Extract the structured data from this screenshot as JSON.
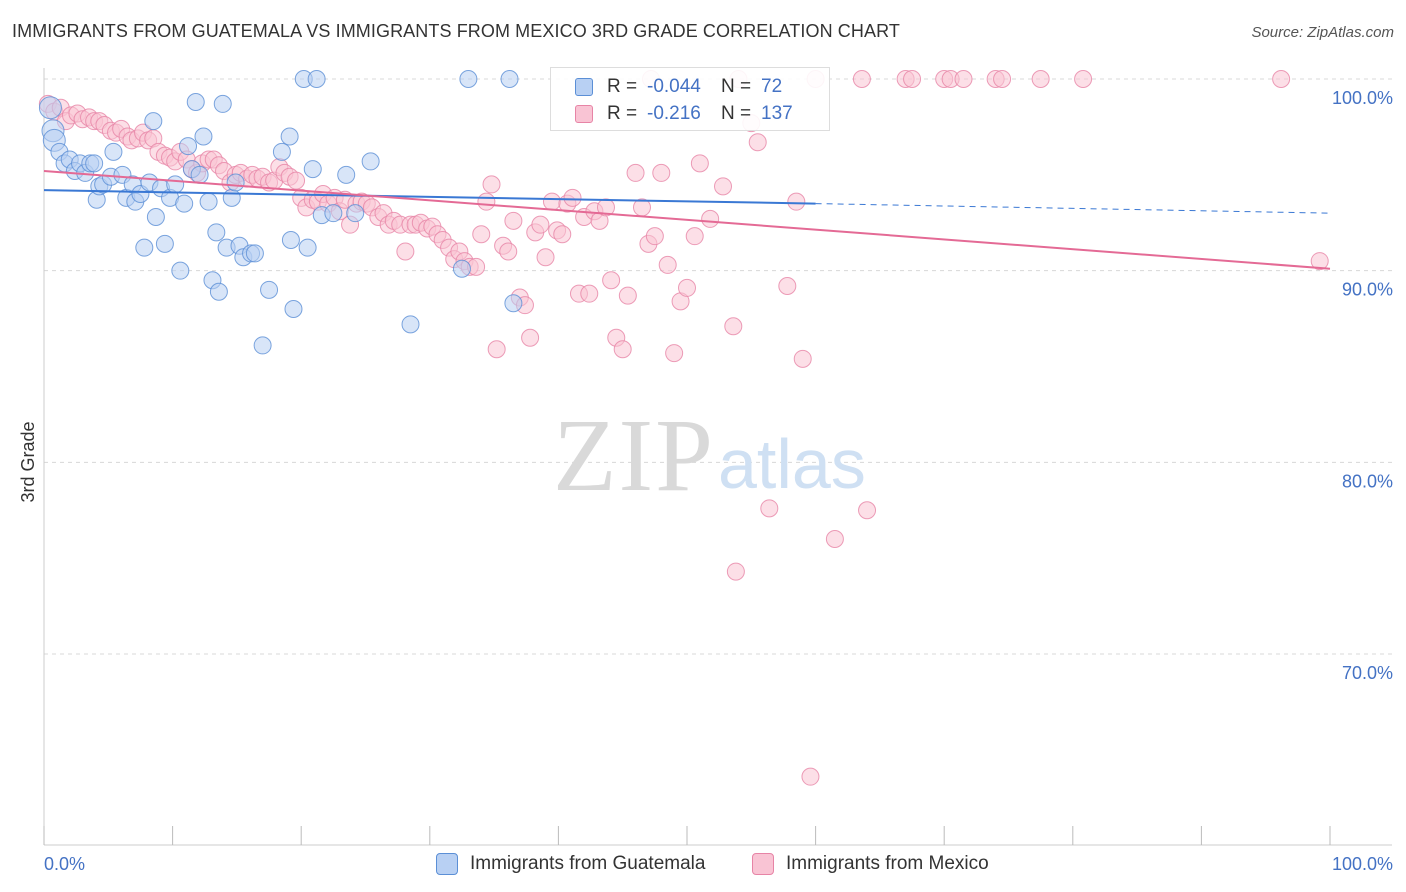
{
  "title": "IMMIGRANTS FROM GUATEMALA VS IMMIGRANTS FROM MEXICO 3RD GRADE CORRELATION CHART",
  "source": "Source: ZipAtlas.com",
  "watermark": {
    "zip": "ZIP",
    "atlas": "atlas"
  },
  "legend": {
    "r_label": "R =",
    "n_label": "N =",
    "rows": [
      {
        "r": "-0.044",
        "n": "72",
        "color": "#5b8fd6",
        "fill": "#b8d0f3"
      },
      {
        "r": "-0.216",
        "n": "137",
        "color": "#e784a6",
        "fill": "#f9c4d4"
      }
    ]
  },
  "bottom_legend": [
    "Immigrants from Guatemala",
    "Immigrants from Mexico"
  ],
  "colors": {
    "blue_line": "#3a78d4",
    "pink_line": "#e46a95",
    "axis_text": "#4472c4",
    "grid": "#d8d8d8"
  },
  "chart_data": {
    "type": "scatter",
    "title": "IMMIGRANTS FROM GUATEMALA VS IMMIGRANTS FROM MEXICO 3RD GRADE CORRELATION CHART",
    "xlabel": "",
    "ylabel": "3rd Grade",
    "xlim": [
      0,
      100
    ],
    "ylim": [
      61,
      101.5
    ],
    "x_tick_labels": [
      "0.0%",
      "100.0%"
    ],
    "y_ticks": [
      100,
      90,
      80,
      70
    ],
    "y_tick_labels": [
      "100.0%",
      "90.0%",
      "80.0%",
      "70.0%"
    ],
    "grid": true,
    "legend_position": "top-center",
    "series": [
      {
        "name": "Immigrants from Guatemala",
        "color": "#5b8fd6",
        "trend": {
          "x0": 0,
          "y0": 94.2,
          "x1": 60,
          "y1": 93.5,
          "dashed_to_x": 100,
          "dashed_to_y": 93.0
        },
        "points": [
          [
            0.5,
            98.5
          ],
          [
            0.7,
            97.3
          ],
          [
            0.8,
            96.8
          ],
          [
            1.2,
            96.2
          ],
          [
            1.6,
            95.6
          ],
          [
            2.0,
            95.8
          ],
          [
            2.4,
            95.2
          ],
          [
            2.8,
            95.6
          ],
          [
            3.2,
            95.1
          ],
          [
            3.6,
            95.6
          ],
          [
            3.9,
            95.6
          ],
          [
            4.1,
            93.7
          ],
          [
            4.3,
            94.4
          ],
          [
            4.6,
            94.5
          ],
          [
            5.2,
            94.9
          ],
          [
            5.4,
            96.2
          ],
          [
            6.1,
            95.0
          ],
          [
            6.4,
            93.8
          ],
          [
            6.9,
            94.5
          ],
          [
            7.1,
            93.6
          ],
          [
            7.5,
            94.0
          ],
          [
            7.8,
            91.2
          ],
          [
            8.2,
            94.6
          ],
          [
            8.5,
            97.8
          ],
          [
            8.7,
            92.8
          ],
          [
            9.1,
            94.3
          ],
          [
            9.4,
            91.4
          ],
          [
            9.8,
            93.8
          ],
          [
            10.2,
            94.5
          ],
          [
            10.6,
            90.0
          ],
          [
            10.9,
            93.5
          ],
          [
            11.2,
            96.5
          ],
          [
            11.5,
            95.3
          ],
          [
            11.8,
            98.8
          ],
          [
            12.1,
            95.0
          ],
          [
            12.4,
            97.0
          ],
          [
            12.8,
            93.6
          ],
          [
            13.1,
            89.5
          ],
          [
            13.4,
            92.0
          ],
          [
            13.6,
            88.9
          ],
          [
            13.9,
            98.7
          ],
          [
            14.2,
            91.2
          ],
          [
            14.6,
            93.8
          ],
          [
            14.9,
            94.6
          ],
          [
            15.2,
            91.3
          ],
          [
            15.5,
            90.7
          ],
          [
            16.1,
            90.9
          ],
          [
            16.4,
            90.9
          ],
          [
            17.0,
            86.1
          ],
          [
            17.5,
            89.0
          ],
          [
            18.5,
            96.2
          ],
          [
            19.1,
            97.0
          ],
          [
            19.2,
            91.6
          ],
          [
            19.4,
            88.0
          ],
          [
            20.5,
            91.2
          ],
          [
            20.9,
            95.3
          ],
          [
            20.2,
            100.0
          ],
          [
            21.2,
            100.0
          ],
          [
            21.6,
            92.9
          ],
          [
            22.5,
            93.0
          ],
          [
            23.5,
            95.0
          ],
          [
            24.2,
            93.0
          ],
          [
            25.4,
            95.7
          ],
          [
            28.5,
            87.2
          ],
          [
            32.5,
            90.1
          ],
          [
            33.0,
            100.0
          ],
          [
            36.5,
            88.3
          ],
          [
            36.2,
            100.0
          ]
        ]
      },
      {
        "name": "Immigrants from Mexico",
        "color": "#e784a6",
        "trend": {
          "x0": 0,
          "y0": 95.2,
          "x1": 100,
          "y1": 90.1
        },
        "points": [
          [
            0.3,
            98.7
          ],
          [
            0.8,
            98.3
          ],
          [
            1.3,
            98.5
          ],
          [
            1.7,
            97.8
          ],
          [
            2.1,
            98.1
          ],
          [
            2.6,
            98.2
          ],
          [
            3.0,
            97.9
          ],
          [
            3.5,
            98.0
          ],
          [
            3.9,
            97.8
          ],
          [
            4.3,
            97.8
          ],
          [
            4.7,
            97.6
          ],
          [
            5.2,
            97.3
          ],
          [
            5.6,
            97.2
          ],
          [
            6.0,
            97.4
          ],
          [
            6.5,
            97.0
          ],
          [
            6.8,
            96.8
          ],
          [
            7.3,
            96.9
          ],
          [
            7.7,
            97.2
          ],
          [
            8.1,
            96.8
          ],
          [
            8.5,
            96.9
          ],
          [
            8.9,
            96.2
          ],
          [
            9.4,
            96.0
          ],
          [
            9.8,
            95.9
          ],
          [
            10.2,
            95.7
          ],
          [
            10.6,
            96.2
          ],
          [
            11.1,
            95.8
          ],
          [
            11.5,
            95.3
          ],
          [
            11.9,
            95.1
          ],
          [
            12.3,
            95.6
          ],
          [
            12.8,
            95.8
          ],
          [
            13.2,
            95.8
          ],
          [
            13.6,
            95.5
          ],
          [
            14.0,
            95.2
          ],
          [
            14.5,
            94.6
          ],
          [
            14.9,
            95.0
          ],
          [
            15.3,
            95.1
          ],
          [
            15.8,
            94.8
          ],
          [
            16.2,
            95.0
          ],
          [
            16.6,
            94.8
          ],
          [
            17.0,
            94.9
          ],
          [
            17.5,
            94.6
          ],
          [
            17.9,
            94.7
          ],
          [
            18.3,
            95.4
          ],
          [
            18.7,
            95.1
          ],
          [
            19.1,
            94.9
          ],
          [
            19.6,
            94.7
          ],
          [
            20.0,
            93.8
          ],
          [
            20.4,
            93.3
          ],
          [
            20.9,
            93.7
          ],
          [
            21.3,
            93.6
          ],
          [
            21.7,
            94.0
          ],
          [
            22.1,
            93.5
          ],
          [
            22.6,
            93.8
          ],
          [
            23.0,
            93.1
          ],
          [
            23.4,
            93.7
          ],
          [
            23.8,
            92.4
          ],
          [
            24.3,
            93.5
          ],
          [
            24.7,
            93.6
          ],
          [
            25.1,
            93.5
          ],
          [
            25.5,
            93.3
          ],
          [
            26.0,
            92.8
          ],
          [
            26.4,
            93.0
          ],
          [
            26.8,
            92.4
          ],
          [
            27.2,
            92.6
          ],
          [
            27.7,
            92.4
          ],
          [
            28.1,
            91.0
          ],
          [
            28.5,
            92.4
          ],
          [
            28.9,
            92.4
          ],
          [
            29.3,
            92.5
          ],
          [
            29.8,
            92.2
          ],
          [
            30.2,
            92.3
          ],
          [
            30.6,
            91.9
          ],
          [
            31.0,
            91.6
          ],
          [
            31.5,
            91.2
          ],
          [
            31.9,
            90.6
          ],
          [
            32.3,
            91.0
          ],
          [
            32.7,
            90.5
          ],
          [
            33.1,
            90.2
          ],
          [
            33.6,
            90.2
          ],
          [
            34.0,
            91.9
          ],
          [
            34.4,
            93.6
          ],
          [
            34.8,
            94.5
          ],
          [
            35.2,
            85.9
          ],
          [
            35.7,
            91.3
          ],
          [
            36.1,
            91.0
          ],
          [
            36.5,
            92.6
          ],
          [
            37.0,
            88.6
          ],
          [
            37.4,
            88.2
          ],
          [
            37.8,
            86.5
          ],
          [
            38.2,
            92.0
          ],
          [
            38.6,
            92.4
          ],
          [
            39.0,
            90.7
          ],
          [
            39.5,
            93.6
          ],
          [
            39.9,
            92.1
          ],
          [
            40.3,
            91.9
          ],
          [
            40.7,
            93.5
          ],
          [
            41.1,
            93.8
          ],
          [
            41.6,
            88.8
          ],
          [
            42.0,
            92.8
          ],
          [
            42.4,
            88.8
          ],
          [
            42.8,
            93.1
          ],
          [
            43.2,
            92.6
          ],
          [
            43.7,
            93.3
          ],
          [
            44.1,
            89.5
          ],
          [
            44.5,
            86.5
          ],
          [
            45.0,
            85.9
          ],
          [
            45.4,
            88.7
          ],
          [
            46.0,
            95.1
          ],
          [
            46.5,
            93.3
          ],
          [
            47.0,
            91.4
          ],
          [
            47.5,
            91.8
          ],
          [
            48.0,
            95.1
          ],
          [
            48.5,
            90.3
          ],
          [
            49.0,
            85.7
          ],
          [
            49.5,
            88.4
          ],
          [
            50.0,
            89.1
          ],
          [
            50.6,
            91.8
          ],
          [
            51.0,
            95.6
          ],
          [
            51.8,
            92.7
          ],
          [
            52.8,
            94.4
          ],
          [
            53.6,
            87.1
          ],
          [
            53.8,
            74.3
          ],
          [
            54.0,
            100.0
          ],
          [
            55.0,
            97.7
          ],
          [
            55.5,
            96.7
          ],
          [
            56.4,
            77.6
          ],
          [
            57.8,
            89.2
          ],
          [
            58.5,
            93.6
          ],
          [
            59.0,
            85.4
          ],
          [
            59.6,
            63.6
          ],
          [
            60.0,
            100.0
          ],
          [
            61.5,
            76.0
          ],
          [
            63.6,
            100.0
          ],
          [
            64.0,
            77.5
          ],
          [
            67.0,
            100.0
          ],
          [
            67.5,
            100.0
          ],
          [
            70.0,
            100.0
          ],
          [
            70.5,
            100.0
          ],
          [
            71.5,
            100.0
          ],
          [
            74.0,
            100.0
          ],
          [
            74.5,
            100.0
          ],
          [
            77.5,
            100.0
          ],
          [
            80.8,
            100.0
          ],
          [
            96.2,
            100.0
          ],
          [
            99.2,
            90.5
          ],
          [
            47.2,
            100.0
          ]
        ]
      }
    ]
  }
}
